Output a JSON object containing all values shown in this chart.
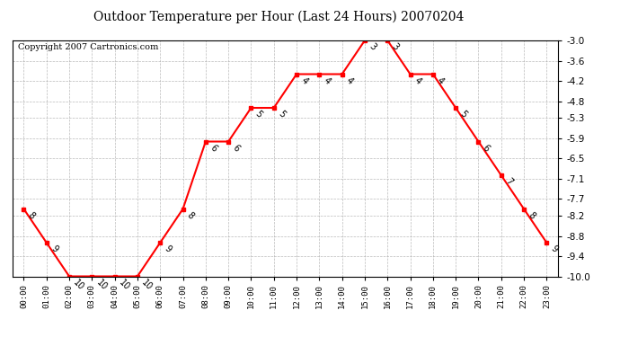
{
  "title": "Outdoor Temperature per Hour (Last 24 Hours) 20070204",
  "copyright": "Copyright 2007 Cartronics.com",
  "hours": [
    "00:00",
    "01:00",
    "02:00",
    "03:00",
    "04:00",
    "05:00",
    "06:00",
    "07:00",
    "08:00",
    "09:00",
    "10:00",
    "11:00",
    "12:00",
    "13:00",
    "14:00",
    "15:00",
    "16:00",
    "17:00",
    "18:00",
    "19:00",
    "20:00",
    "21:00",
    "22:00",
    "23:00"
  ],
  "temperatures": [
    -8,
    -9,
    -10,
    -10,
    -10,
    -10,
    -9,
    -8,
    -6,
    -6,
    -5,
    -5,
    -4,
    -4,
    -4,
    -3,
    -3,
    -4,
    -4,
    -5,
    -6,
    -7,
    -8,
    -9
  ],
  "ylim": [
    -10.0,
    -3.0
  ],
  "yticks": [
    -10.0,
    -9.4,
    -8.8,
    -8.2,
    -7.7,
    -7.1,
    -6.5,
    -5.9,
    -5.3,
    -4.8,
    -4.2,
    -3.6,
    -3.0
  ],
  "line_color": "red",
  "marker_color": "red",
  "marker": "s",
  "marker_size": 3,
  "bg_color": "white",
  "grid_color": "#aaaaaa",
  "annotation_fontsize": 7,
  "title_fontsize": 10,
  "copyright_fontsize": 7
}
